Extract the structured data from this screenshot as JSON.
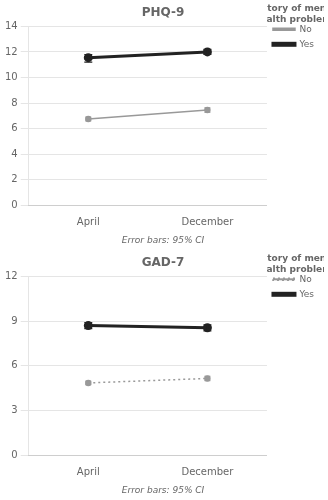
{
  "chart_data": [
    {
      "type": "line",
      "title": "PHQ-9",
      "categories": [
        "April",
        "December"
      ],
      "series": [
        {
          "name": "Yes",
          "color": "#222222",
          "values": [
            11.55,
            12.0
          ],
          "errors_minus": [
            0.35,
            0.2
          ],
          "errors_plus": [
            0.25,
            0.2
          ],
          "line_style": "solid",
          "marker": "circle"
        },
        {
          "name": "No",
          "color": "#999999",
          "values": [
            6.75,
            7.45
          ],
          "errors_minus": [
            0.15,
            0.18
          ],
          "errors_plus": [
            0.15,
            0.18
          ],
          "line_style": "solid",
          "marker": "circle"
        }
      ],
      "ylim": [
        0,
        14
      ],
      "yticks": [
        0,
        2,
        4,
        6,
        8,
        10,
        12,
        14
      ],
      "grid": true,
      "legend": "right",
      "legend_title": "History of mental\nhealth problems",
      "annotations": [
        "Error bars: 95% CI"
      ]
    },
    {
      "type": "line",
      "title": "GAD-7",
      "categories": [
        "April",
        "December"
      ],
      "series": [
        {
          "name": "Yes",
          "color": "#222222",
          "values": [
            8.7,
            8.55
          ],
          "errors_minus": [
            0.2,
            0.2
          ],
          "errors_plus": [
            0.2,
            0.2
          ],
          "line_style": "solid",
          "marker": "circle"
        },
        {
          "name": "No",
          "color": "#999999",
          "values": [
            4.85,
            5.15
          ],
          "errors_minus": [
            0.12,
            0.15
          ],
          "errors_plus": [
            0.12,
            0.15
          ],
          "line_style": "dotted",
          "marker": "circle"
        }
      ],
      "ylim": [
        0,
        12
      ],
      "yticks": [
        0,
        3,
        6,
        9,
        12
      ],
      "grid": true,
      "legend": "right",
      "legend_title": "History of mental\nhealth problems",
      "annotations": [
        "Error bars: 95% CI"
      ]
    }
  ]
}
